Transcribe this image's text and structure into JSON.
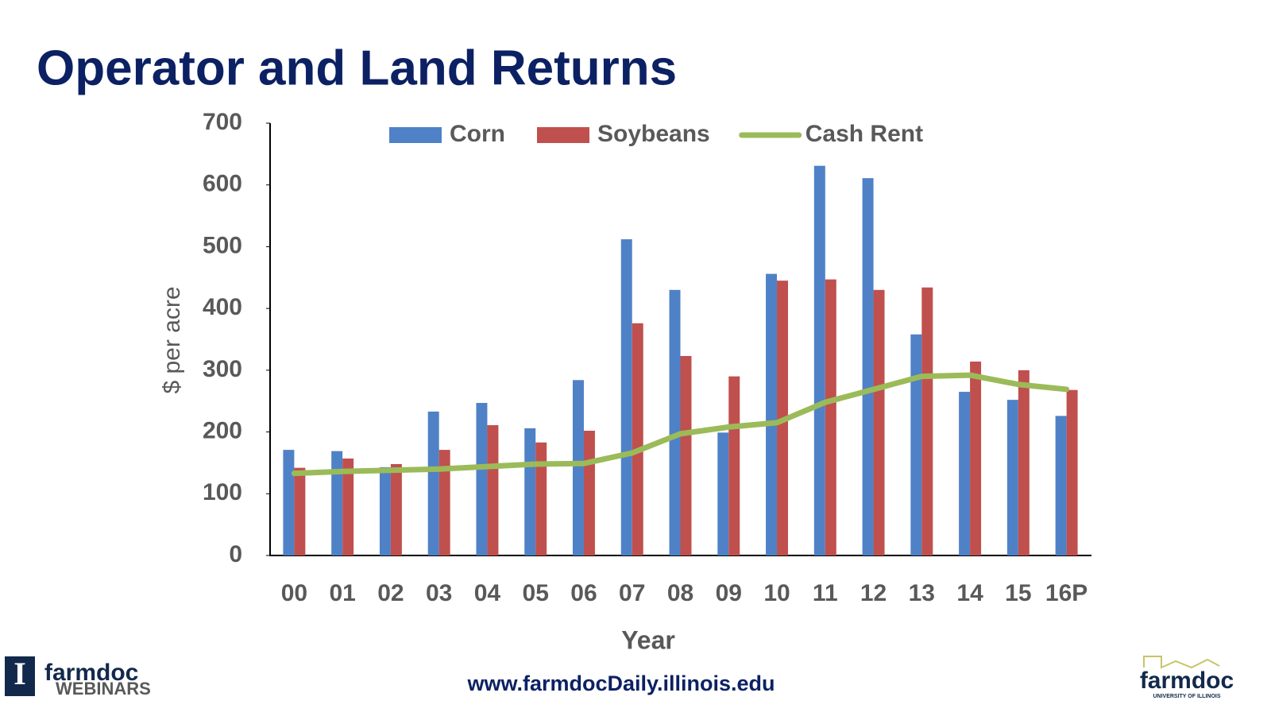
{
  "chart_data": {
    "type": "bar",
    "title": "Operator and Land Returns",
    "x_label": "Year",
    "y_label": "$ per acre",
    "categories": [
      "00",
      "01",
      "02",
      "03",
      "04",
      "05",
      "06",
      "07",
      "08",
      "09",
      "10",
      "11",
      "12",
      "13",
      "14",
      "15",
      "16P"
    ],
    "series": [
      {
        "name": "Corn",
        "type": "bar",
        "color": "#4f81c7",
        "values": [
          171,
          169,
          143,
          233,
          247,
          206,
          284,
          512,
          430,
          199,
          456,
          631,
          611,
          358,
          265,
          252,
          226
        ]
      },
      {
        "name": "Soybeans",
        "type": "bar",
        "color": "#c0504d",
        "values": [
          142,
          157,
          148,
          171,
          211,
          183,
          202,
          376,
          323,
          290,
          445,
          447,
          430,
          434,
          314,
          300,
          268
        ]
      },
      {
        "name": "Cash Rent",
        "type": "line",
        "color": "#9bbb59",
        "values": [
          133,
          136,
          138,
          140,
          144,
          148,
          149,
          166,
          197,
          208,
          215,
          248,
          269,
          290,
          292,
          277,
          269
        ]
      }
    ],
    "ylim": [
      0,
      700
    ],
    "yticks": [
      0,
      100,
      200,
      300,
      400,
      500,
      600,
      700
    ],
    "grid": false,
    "legend": "top"
  },
  "footer": {
    "url": "www.farmdocDaily.illinois.edu",
    "left_logo": {
      "name": "farmdoc",
      "sub": "WEBINARS"
    },
    "right_logo": {
      "name": "farmdoc",
      "sub": "UNIVERSITY OF ILLINOIS"
    }
  }
}
